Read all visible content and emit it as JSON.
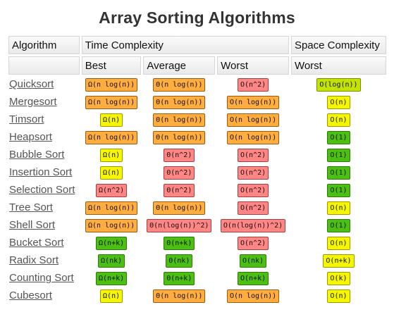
{
  "title": "Array Sorting Algorithms",
  "headers": {
    "algorithm": "Algorithm",
    "time_complexity": "Time Complexity",
    "space_complexity": "Space Complexity",
    "best": "Best",
    "average": "Average",
    "worst": "Worst",
    "space_worst": "Worst"
  },
  "colors": {
    "green": "#4bbf12",
    "yellow": "#f6f600",
    "yellowgreen": "#c3e400",
    "orange": "#ffad3f",
    "red": "#ff8684"
  },
  "rows": [
    {
      "name": "Quicksort",
      "best": {
        "text": "Ω(n log(n))",
        "color": "orange"
      },
      "average": {
        "text": "Θ(n log(n))",
        "color": "orange"
      },
      "worst": {
        "text": "O(n^2)",
        "color": "red"
      },
      "space": {
        "text": "O(log(n))",
        "color": "yellowgreen"
      }
    },
    {
      "name": "Mergesort",
      "best": {
        "text": "Ω(n log(n))",
        "color": "orange"
      },
      "average": {
        "text": "Θ(n log(n))",
        "color": "orange"
      },
      "worst": {
        "text": "O(n log(n))",
        "color": "orange"
      },
      "space": {
        "text": "O(n)",
        "color": "yellow"
      }
    },
    {
      "name": "Timsort",
      "best": {
        "text": "Ω(n)",
        "color": "yellow"
      },
      "average": {
        "text": "Θ(n log(n))",
        "color": "orange"
      },
      "worst": {
        "text": "O(n log(n))",
        "color": "orange"
      },
      "space": {
        "text": "O(n)",
        "color": "yellow"
      }
    },
    {
      "name": "Heapsort",
      "best": {
        "text": "Ω(n log(n))",
        "color": "orange"
      },
      "average": {
        "text": "Θ(n log(n))",
        "color": "orange"
      },
      "worst": {
        "text": "O(n log(n))",
        "color": "orange"
      },
      "space": {
        "text": "O(1)",
        "color": "green"
      }
    },
    {
      "name": "Bubble Sort",
      "best": {
        "text": "Ω(n)",
        "color": "yellow"
      },
      "average": {
        "text": "Θ(n^2)",
        "color": "red"
      },
      "worst": {
        "text": "O(n^2)",
        "color": "red"
      },
      "space": {
        "text": "O(1)",
        "color": "green"
      }
    },
    {
      "name": "Insertion Sort",
      "best": {
        "text": "Ω(n)",
        "color": "yellow"
      },
      "average": {
        "text": "Θ(n^2)",
        "color": "red"
      },
      "worst": {
        "text": "O(n^2)",
        "color": "red"
      },
      "space": {
        "text": "O(1)",
        "color": "green"
      }
    },
    {
      "name": "Selection Sort",
      "best": {
        "text": "Ω(n^2)",
        "color": "red"
      },
      "average": {
        "text": "Θ(n^2)",
        "color": "red"
      },
      "worst": {
        "text": "O(n^2)",
        "color": "red"
      },
      "space": {
        "text": "O(1)",
        "color": "green"
      }
    },
    {
      "name": "Tree Sort",
      "best": {
        "text": "Ω(n log(n))",
        "color": "orange"
      },
      "average": {
        "text": "Θ(n log(n))",
        "color": "orange"
      },
      "worst": {
        "text": "O(n^2)",
        "color": "red"
      },
      "space": {
        "text": "O(n)",
        "color": "yellow"
      }
    },
    {
      "name": "Shell Sort",
      "best": {
        "text": "Ω(n log(n))",
        "color": "orange"
      },
      "average": {
        "text": "Θ(n(log(n))^2)",
        "color": "red"
      },
      "worst": {
        "text": "O(n(log(n))^2)",
        "color": "red"
      },
      "space": {
        "text": "O(1)",
        "color": "green"
      }
    },
    {
      "name": "Bucket Sort",
      "best": {
        "text": "Ω(n+k)",
        "color": "green"
      },
      "average": {
        "text": "Θ(n+k)",
        "color": "green"
      },
      "worst": {
        "text": "O(n^2)",
        "color": "red"
      },
      "space": {
        "text": "O(n)",
        "color": "yellow"
      }
    },
    {
      "name": "Radix Sort",
      "best": {
        "text": "Ω(nk)",
        "color": "green"
      },
      "average": {
        "text": "Θ(nk)",
        "color": "green"
      },
      "worst": {
        "text": "O(nk)",
        "color": "green"
      },
      "space": {
        "text": "O(n+k)",
        "color": "yellow"
      }
    },
    {
      "name": "Counting Sort",
      "best": {
        "text": "Ω(n+k)",
        "color": "green"
      },
      "average": {
        "text": "Θ(n+k)",
        "color": "green"
      },
      "worst": {
        "text": "O(n+k)",
        "color": "green"
      },
      "space": {
        "text": "O(k)",
        "color": "yellow"
      }
    },
    {
      "name": "Cubesort",
      "best": {
        "text": "Ω(n)",
        "color": "yellow"
      },
      "average": {
        "text": "Θ(n log(n))",
        "color": "orange"
      },
      "worst": {
        "text": "O(n log(n))",
        "color": "orange"
      },
      "space": {
        "text": "O(n)",
        "color": "yellow"
      }
    }
  ]
}
